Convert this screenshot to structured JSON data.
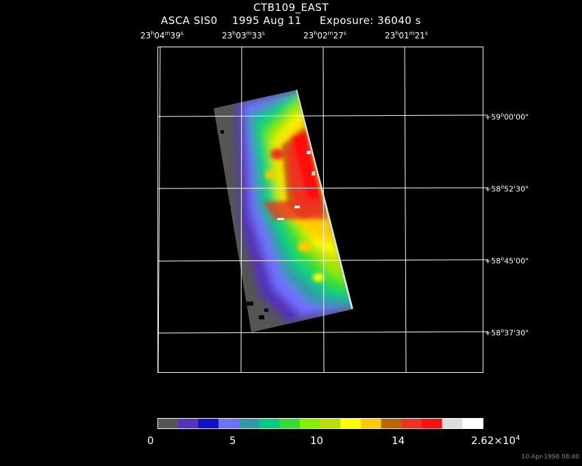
{
  "header": {
    "title": "CTB109_EAST",
    "instrument": "ASCA SIS0",
    "date": "1995 Aug 11",
    "exposure": "Exposure: 36040 s"
  },
  "ra_ticks": [
    {
      "h": "23",
      "m": "04",
      "s": "39"
    },
    {
      "h": "23",
      "m": "03",
      "s": "33"
    },
    {
      "h": "23",
      "m": "02",
      "s": "27"
    },
    {
      "h": "23",
      "m": "01",
      "s": "21"
    }
  ],
  "dec_ticks": [
    {
      "d": "+59",
      "m": "00",
      "s": "00"
    },
    {
      "d": "+58",
      "m": "52",
      "s": "30"
    },
    {
      "d": "+58",
      "m": "45",
      "s": "00"
    },
    {
      "d": "+58",
      "m": "37",
      "s": "30"
    }
  ],
  "colorbar": {
    "colors": [
      "#555555",
      "#5533bb",
      "#1111cc",
      "#7070ff",
      "#3399aa",
      "#00cc88",
      "#33dd33",
      "#88ee00",
      "#bbdd00",
      "#ffff00",
      "#ffcc00",
      "#bb6600",
      "#ee3322",
      "#ff1010",
      "#dddddd",
      "#ffffff"
    ],
    "labels": [
      "0",
      "5",
      "10",
      "14"
    ],
    "max_label": "2.62×10",
    "max_exp": "4"
  },
  "timestamp": "10-Apr-1998 08:40"
}
